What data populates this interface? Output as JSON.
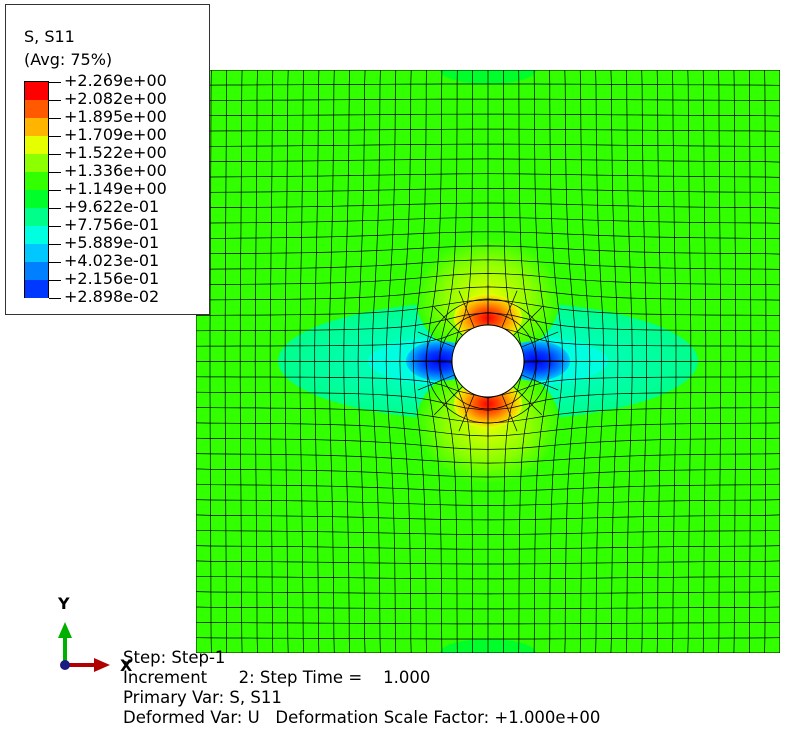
{
  "legend": {
    "title": "S, S11",
    "subtitle": "(Avg: 75%)",
    "labels": [
      "+2.269e+00",
      "+2.082e+00",
      "+1.895e+00",
      "+1.709e+00",
      "+1.522e+00",
      "+1.336e+00",
      "+1.149e+00",
      "+9.622e-01",
      "+7.756e-01",
      "+5.889e-01",
      "+4.023e-01",
      "+2.156e-01",
      "+2.898e-02"
    ],
    "colors": [
      "#ff0000",
      "#ff5a00",
      "#ffb400",
      "#e6ff00",
      "#8cff00",
      "#32ff00",
      "#00ff2a",
      "#00ff8a",
      "#00ffe0",
      "#00c8ff",
      "#0080ff",
      "#0038ff"
    ]
  },
  "triad": {
    "x_label": "X",
    "y_label": "Y"
  },
  "info": {
    "line1": "Step: Step-1",
    "line2": "Increment      2: Step Time =    1.000",
    "line3": "Primary Var: S, S11",
    "line4": "Deformed Var: U   Deformation Scale Factor: +1.000e+00"
  }
}
